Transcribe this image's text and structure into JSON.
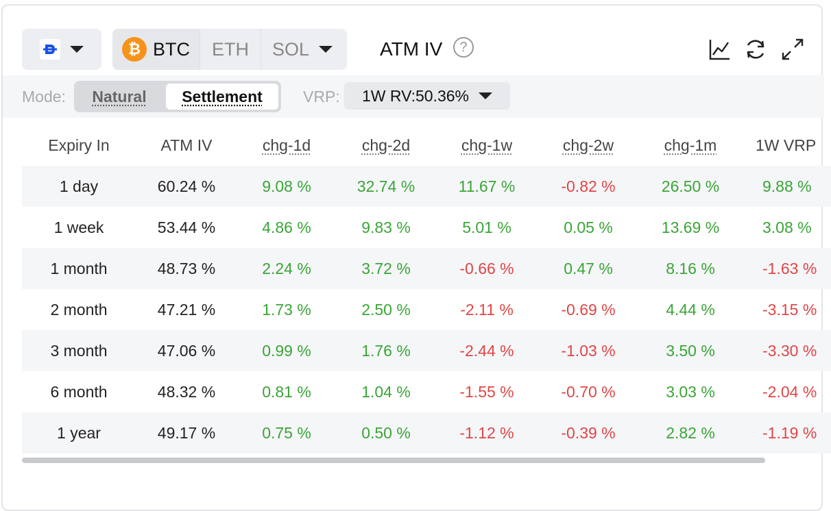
{
  "toolbar": {
    "exchange_icon": "deribit-logo-icon",
    "coins": [
      "BTC",
      "ETH",
      "SOL"
    ],
    "selected_coin": "BTC",
    "title": "ATM IV",
    "help": "?"
  },
  "modebar": {
    "mode_label": "Mode:",
    "modes": [
      "Natural",
      "Settlement"
    ],
    "selected_mode": "Settlement",
    "vrp_label": "VRP:",
    "vrp_value": "1W RV:50.36%"
  },
  "table": {
    "headers": [
      "Expiry In",
      "ATM IV",
      "chg-1d",
      "chg-2d",
      "chg-1w",
      "chg-2w",
      "chg-1m",
      "1W VRP"
    ],
    "rows": [
      [
        "1 day",
        "60.24 %",
        "9.08 %",
        "32.74 %",
        "11.67 %",
        "-0.82 %",
        "26.50 %",
        "9.88 %"
      ],
      [
        "1 week",
        "53.44 %",
        "4.86 %",
        "9.83 %",
        "5.01 %",
        "0.05 %",
        "13.69 %",
        "3.08 %"
      ],
      [
        "1 month",
        "48.73 %",
        "2.24 %",
        "3.72 %",
        "-0.66 %",
        "0.47 %",
        "8.16 %",
        "-1.63 %"
      ],
      [
        "2 month",
        "47.21 %",
        "1.73 %",
        "2.50 %",
        "-2.11 %",
        "-0.69 %",
        "4.44 %",
        "-3.15 %"
      ],
      [
        "3 month",
        "47.06 %",
        "0.99 %",
        "1.76 %",
        "-2.44 %",
        "-1.03 %",
        "3.50 %",
        "-3.30 %"
      ],
      [
        "6 month",
        "48.32 %",
        "0.81 %",
        "1.04 %",
        "-1.55 %",
        "-0.70 %",
        "3.03 %",
        "-2.04 %"
      ],
      [
        "1 year",
        "49.17 %",
        "0.75 %",
        "0.50 %",
        "-1.12 %",
        "-0.39 %",
        "2.82 %",
        "-1.19 %"
      ]
    ]
  },
  "colors": {
    "positive": "#3aa537",
    "negative": "#e04545",
    "btc": "#f7931a",
    "brand": "#1a52e8"
  }
}
